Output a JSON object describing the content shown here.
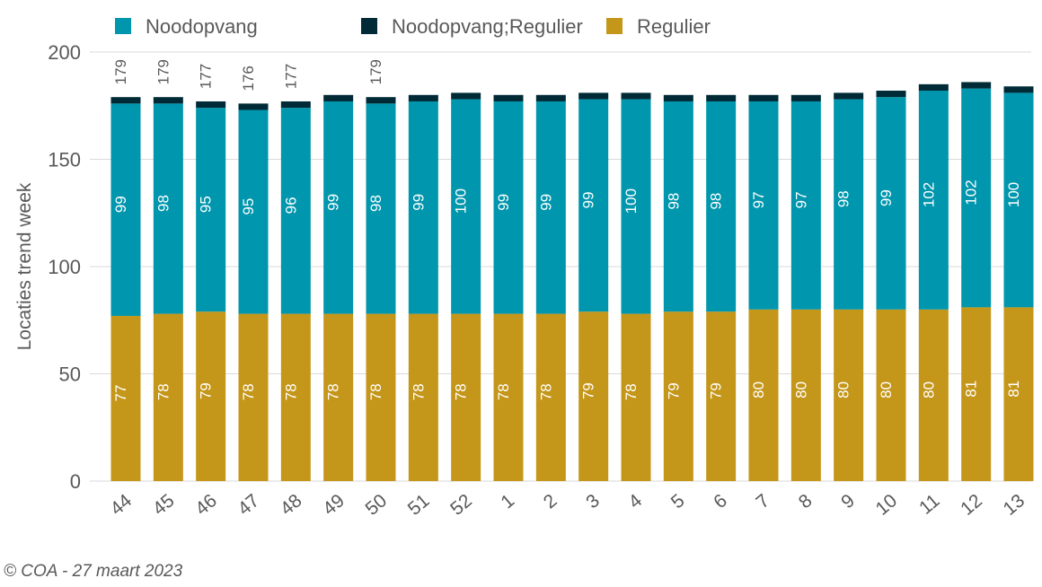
{
  "chart_data": {
    "type": "bar",
    "stacked": true,
    "ylabel": "Locaties trend week",
    "xlabel": "",
    "ylim": [
      0,
      200
    ],
    "yticks": [
      0,
      50,
      100,
      150,
      200
    ],
    "grid": true,
    "legend_position": "top",
    "categories": [
      "44",
      "45",
      "46",
      "47",
      "48",
      "49",
      "50",
      "51",
      "52",
      "1",
      "2",
      "3",
      "4",
      "5",
      "6",
      "7",
      "8",
      "9",
      "10",
      "11",
      "12",
      "13"
    ],
    "series": [
      {
        "name": "Regulier",
        "color": "#c4961a",
        "values": [
          77,
          78,
          79,
          78,
          78,
          78,
          78,
          78,
          78,
          78,
          78,
          79,
          78,
          79,
          79,
          80,
          80,
          80,
          80,
          80,
          81,
          81
        ]
      },
      {
        "name": "Noodopvang",
        "color": "#0096ad",
        "values": [
          99,
          98,
          95,
          95,
          96,
          99,
          98,
          99,
          100,
          99,
          99,
          99,
          100,
          98,
          98,
          97,
          97,
          98,
          99,
          102,
          102,
          100
        ]
      },
      {
        "name": "Noodopvang;Regulier",
        "color": "#002b36",
        "values": [
          3,
          3,
          3,
          3,
          3,
          3,
          3,
          3,
          3,
          3,
          3,
          3,
          3,
          3,
          3,
          3,
          3,
          3,
          3,
          3,
          3,
          3
        ]
      }
    ],
    "total_labels": [
      "179",
      "179",
      "177",
      "176",
      "177",
      "",
      "179",
      "",
      "",
      "",
      "",
      "",
      "",
      "",
      "",
      "",
      "",
      "",
      "",
      "",
      "",
      ""
    ]
  },
  "legend": [
    {
      "label": "Noodopvang",
      "color": "#0096ad"
    },
    {
      "label": "Noodopvang;Regulier",
      "color": "#002b36"
    },
    {
      "label": "Regulier",
      "color": "#c4961a"
    }
  ],
  "footer": "© COA - 27 maart 2023"
}
